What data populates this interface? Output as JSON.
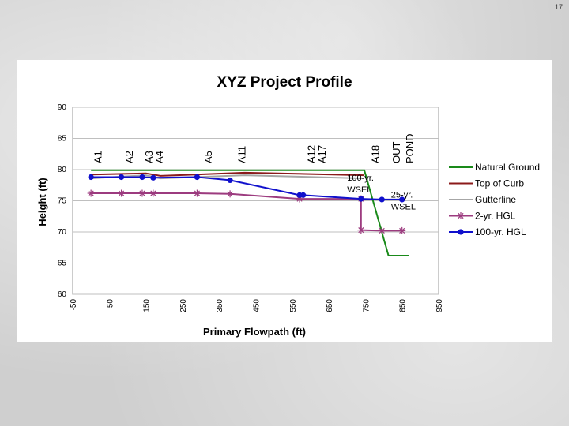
{
  "page": {
    "number": "17"
  },
  "colors": {
    "natural_ground": "#1a8a1a",
    "top_of_curb": "#8b1a1a",
    "gutterline": "#a6a6a6",
    "hgl_2yr": "#9c3b7f",
    "hgl_100yr": "#1010cc"
  },
  "chart_data": {
    "type": "line",
    "title": "XYZ Project Profile",
    "xlabel": "Primary Flowpath (ft)",
    "ylabel": "Height (ft)",
    "xlim": [
      -50,
      950
    ],
    "ylim": [
      60,
      90
    ],
    "x_ticks": [
      "-50",
      "50",
      "150",
      "250",
      "350",
      "450",
      "550",
      "650",
      "750",
      "850",
      "950"
    ],
    "y_ticks": [
      "60",
      "65",
      "70",
      "75",
      "80",
      "85",
      "90"
    ],
    "stations": [
      {
        "label": "A1",
        "x": 20
      },
      {
        "label": "A2",
        "x": 105
      },
      {
        "label": "A3",
        "x": 160
      },
      {
        "label": "A4",
        "x": 188
      },
      {
        "label": "A5",
        "x": 322
      },
      {
        "label": "A11",
        "x": 413
      },
      {
        "label": "A12",
        "x": 603
      },
      {
        "label": "A17",
        "x": 632
      },
      {
        "label": "A18",
        "x": 778
      },
      {
        "label": "OUT",
        "x": 835
      },
      {
        "label": "POND",
        "x": 872
      }
    ],
    "annotations": [
      {
        "lines": [
          "100-yr.",
          "WSEL"
        ],
        "x": 700,
        "y": 78.2
      },
      {
        "lines": [
          "25-yr.",
          "WSEL"
        ],
        "x": 820,
        "y": 75.5
      }
    ],
    "series": [
      {
        "name": "Natural Ground",
        "color_key": "natural_ground",
        "marker": "none",
        "x": [
          0,
          747,
          813,
          870
        ],
        "y": [
          79.9,
          79.9,
          66.2,
          66.2
        ]
      },
      {
        "name": "Top of Curb",
        "color_key": "top_of_curb",
        "marker": "none",
        "x": [
          0,
          150,
          190,
          420,
          747
        ],
        "y": [
          79.2,
          79.4,
          79.0,
          79.5,
          79.1
        ]
      },
      {
        "name": "Gutterline",
        "color_key": "gutterline",
        "marker": "none",
        "x": [
          0,
          150,
          190,
          420,
          747
        ],
        "y": [
          78.6,
          79.1,
          78.6,
          79.1,
          78.6
        ]
      },
      {
        "name": "2-yr. HGL",
        "color_key": "hgl_2yr",
        "marker": "star",
        "x": [
          0,
          83,
          140,
          170,
          290,
          380,
          570,
          738,
          738,
          795,
          850
        ],
        "y": [
          76.2,
          76.2,
          76.2,
          76.2,
          76.2,
          76.1,
          75.3,
          75.3,
          70.3,
          70.2,
          70.2
        ]
      },
      {
        "name": "100-yr. HGL",
        "color_key": "hgl_100yr",
        "marker": "circle",
        "x": [
          0,
          83,
          140,
          170,
          290,
          380,
          570,
          580,
          738,
          795,
          850
        ],
        "y": [
          78.8,
          78.8,
          78.8,
          78.7,
          78.8,
          78.3,
          75.9,
          75.9,
          75.3,
          75.2,
          75.2
        ]
      }
    ]
  }
}
